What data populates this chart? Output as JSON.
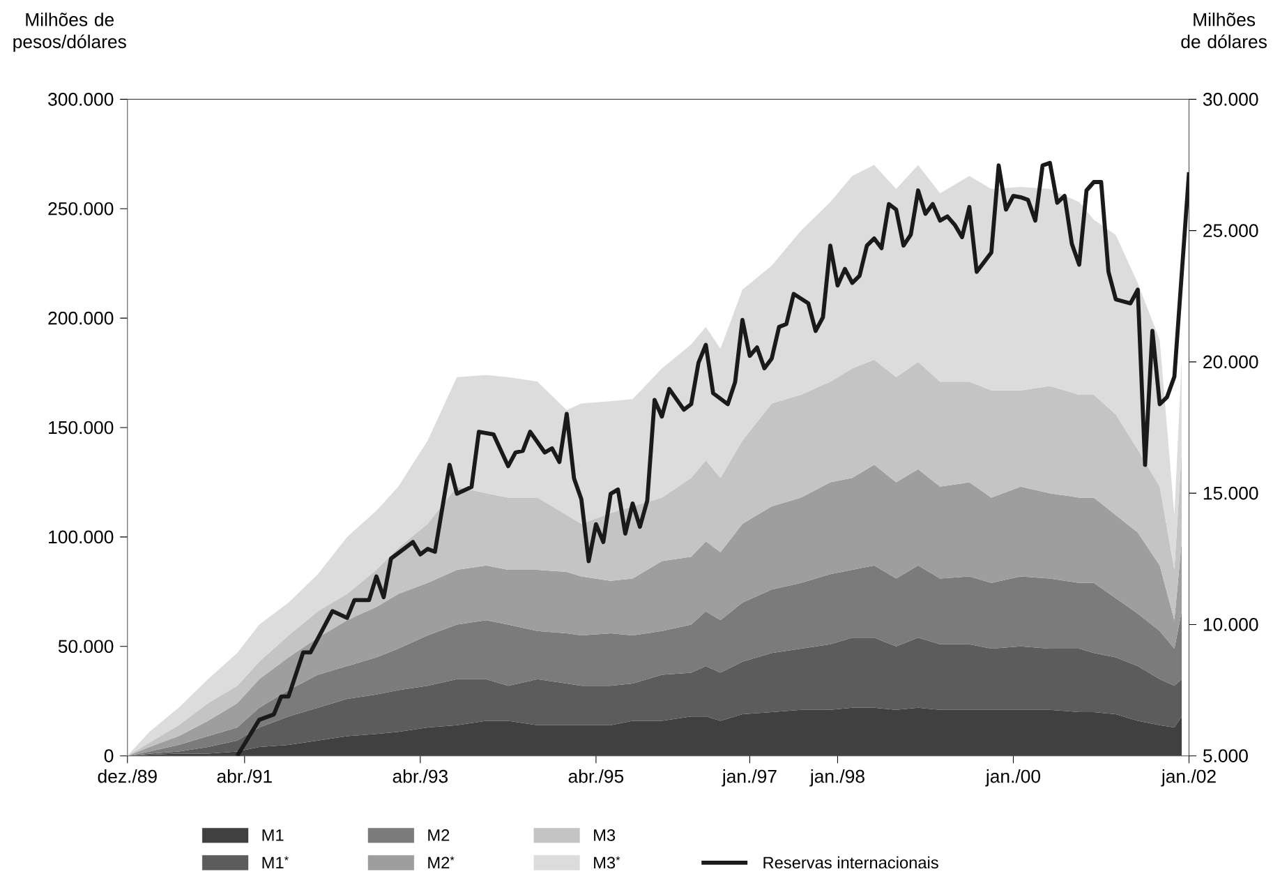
{
  "chart_data": {
    "type": "area",
    "stacked": true,
    "ylabel": "Milhões de pesos/dólares",
    "y2label": "Milhões de dólares",
    "legend": "bottom",
    "x": [
      "1989-12",
      "1990-03",
      "1990-07",
      "1990-11",
      "1991-03",
      "1991-06",
      "1991-10",
      "1992-02",
      "1992-06",
      "1992-10",
      "1993-01",
      "1993-05",
      "1993-09",
      "1994-01",
      "1994-04",
      "1994-08",
      "1994-12",
      "1995-02",
      "1995-06",
      "1995-09",
      "1996-01",
      "1996-05",
      "1996-07",
      "1996-09",
      "1996-12",
      "1997-04",
      "1997-08",
      "1997-12",
      "1998-03",
      "1998-06",
      "1998-09",
      "1998-12",
      "1999-03",
      "1999-07",
      "1999-10",
      "2000-02",
      "2000-06",
      "2000-10",
      "2000-12",
      "2001-03",
      "2001-06",
      "2001-09",
      "2001-11",
      "2001-12"
    ],
    "xlim": [
      "1989-12",
      "2002-01"
    ],
    "xticks": [
      {
        "value": "1989-12",
        "label": "dez./89"
      },
      {
        "value": "1991-04",
        "label": "abr./91"
      },
      {
        "value": "1993-04",
        "label": "abr./93"
      },
      {
        "value": "1995-04",
        "label": "abr./95"
      },
      {
        "value": "1997-01",
        "label": "jan./97"
      },
      {
        "value": "1998-01",
        "label": "jan./98"
      },
      {
        "value": "2000-01",
        "label": "jan./00"
      },
      {
        "value": "2002-01",
        "label": "jan./02"
      }
    ],
    "ylim": [
      0,
      300000
    ],
    "yticks": [
      {
        "value": 0,
        "label": "0"
      },
      {
        "value": 50000,
        "label": "50.000"
      },
      {
        "value": 100000,
        "label": "100.000"
      },
      {
        "value": 150000,
        "label": "150.000"
      },
      {
        "value": 200000,
        "label": "200.000"
      },
      {
        "value": 250000,
        "label": "250.000"
      },
      {
        "value": 300000,
        "label": "300.000"
      }
    ],
    "y2lim": [
      5000,
      30000
    ],
    "y2ticks": [
      {
        "value": 5000,
        "label": "5.000"
      },
      {
        "value": 10000,
        "label": "10.000"
      },
      {
        "value": 15000,
        "label": "15.000"
      },
      {
        "value": 20000,
        "label": "20.000"
      },
      {
        "value": 25000,
        "label": "25.000"
      },
      {
        "value": 30000,
        "label": "30.000"
      }
    ],
    "series": [
      {
        "name": "M1",
        "color": "#404040",
        "values": [
          0,
          500,
          1000,
          1000,
          2000,
          4000,
          5000,
          7000,
          9000,
          10000,
          11000,
          13000,
          14000,
          16000,
          16000,
          14000,
          14000,
          14000,
          14000,
          16000,
          16000,
          18000,
          18000,
          16000,
          19000,
          20000,
          21000,
          21000,
          22000,
          22000,
          21000,
          22000,
          21000,
          21000,
          21000,
          21000,
          21000,
          20000,
          20000,
          19000,
          16000,
          14000,
          13000,
          18000
        ]
      },
      {
        "name": "M1$^{*}$",
        "color": "#5c5c5c",
        "values": [
          0,
          500,
          1000,
          3000,
          5000,
          9000,
          13000,
          15000,
          17000,
          18000,
          19000,
          19000,
          21000,
          19000,
          16000,
          21000,
          19000,
          18000,
          18000,
          17000,
          21000,
          20000,
          23000,
          22000,
          24000,
          27000,
          28000,
          30000,
          32000,
          32000,
          29000,
          32000,
          30000,
          30000,
          28000,
          29000,
          28000,
          29000,
          27000,
          26000,
          25000,
          21000,
          19000,
          17000
        ]
      },
      {
        "name": "M2",
        "color": "#7b7b7b",
        "values": [
          0,
          1000,
          3000,
          5000,
          6000,
          9000,
          12000,
          15000,
          15000,
          17000,
          19000,
          23000,
          25000,
          27000,
          28000,
          22000,
          23000,
          23000,
          24000,
          22000,
          20000,
          22000,
          25000,
          24000,
          27000,
          29000,
          30000,
          32000,
          31000,
          33000,
          31000,
          33000,
          30000,
          31000,
          30000,
          32000,
          32000,
          30000,
          32000,
          27000,
          24000,
          22000,
          17000,
          31000
        ]
      },
      {
        "name": "M2$^{*}$",
        "color": "#9e9e9e",
        "values": [
          0,
          2000,
          4000,
          7000,
          11000,
          13000,
          15000,
          17000,
          21000,
          23000,
          25000,
          24000,
          25000,
          25000,
          25000,
          28000,
          28000,
          27000,
          24000,
          26000,
          32000,
          31000,
          32000,
          31000,
          36000,
          38000,
          39000,
          42000,
          42000,
          46000,
          44000,
          44000,
          42000,
          43000,
          39000,
          41000,
          39000,
          39000,
          39000,
          38000,
          37000,
          30000,
          13000,
          32000
        ]
      },
      {
        "name": "M3",
        "color": "#c4c4c4",
        "values": [
          0,
          2000,
          5000,
          8000,
          8000,
          8000,
          10000,
          12000,
          12000,
          17000,
          21000,
          27000,
          38000,
          33000,
          33000,
          33000,
          26000,
          24000,
          31000,
          33000,
          29000,
          36000,
          37000,
          34000,
          38000,
          47000,
          47000,
          46000,
          50000,
          48000,
          48000,
          49000,
          48000,
          46000,
          49000,
          44000,
          49000,
          47000,
          47000,
          46000,
          38000,
          36000,
          23000,
          41000
        ]
      },
      {
        "name": "M3$^{*}$",
        "color": "#dcdcdc",
        "values": [
          0,
          5000,
          8000,
          11000,
          15000,
          17000,
          15000,
          17000,
          26000,
          27000,
          28000,
          38000,
          50000,
          54000,
          55000,
          53000,
          48000,
          55000,
          51000,
          49000,
          59000,
          61000,
          61000,
          59000,
          69000,
          63000,
          75000,
          82000,
          88000,
          89000,
          86000,
          90000,
          86000,
          94000,
          92000,
          93000,
          90000,
          88000,
          80000,
          82000,
          76000,
          67000,
          25000,
          42000
        ]
      },
      {
        "name": "Reservas internacionais",
        "type": "line",
        "axis": "y2",
        "color": "#1a1a1a",
        "x": [
          "1991-03",
          "1991-06",
          "1991-08",
          "1991-09",
          "1991-10",
          "1991-12",
          "1992-01",
          "1992-04",
          "1992-06",
          "1992-07",
          "1992-09",
          "1992-10",
          "1992-11",
          "1992-12",
          "1993-03",
          "1993-04",
          "1993-05",
          "1993-06",
          "1993-08",
          "1993-09",
          "1993-11",
          "1993-12",
          "1994-02",
          "1994-04",
          "1994-05",
          "1994-06",
          "1994-07",
          "1994-09",
          "1994-10",
          "1994-11",
          "1994-12",
          "1995-01",
          "1995-02",
          "1995-03",
          "1995-04",
          "1995-05",
          "1995-06",
          "1995-07",
          "1995-08",
          "1995-09",
          "1995-10",
          "1995-11",
          "1995-12",
          "1996-01",
          "1996-02",
          "1996-04",
          "1996-05",
          "1996-06",
          "1996-07",
          "1996-08",
          "1996-10",
          "1996-11",
          "1996-12",
          "1997-01",
          "1997-02",
          "1997-03",
          "1997-04",
          "1997-05",
          "1997-06",
          "1997-07",
          "1997-09",
          "1997-10",
          "1997-11",
          "1997-12",
          "1998-01",
          "1998-02",
          "1998-03",
          "1998-04",
          "1998-05",
          "1998-06",
          "1998-07",
          "1998-08",
          "1998-09",
          "1998-10",
          "1998-11",
          "1998-12",
          "1999-01",
          "1999-02",
          "1999-03",
          "1999-04",
          "1999-05",
          "1999-06",
          "1999-07",
          "1999-08",
          "1999-10",
          "1999-11",
          "1999-12",
          "2000-01",
          "2000-02",
          "2000-03",
          "2000-04",
          "2000-05",
          "2000-06",
          "2000-07",
          "2000-08",
          "2000-09",
          "2000-10",
          "2000-11",
          "2000-12",
          "2001-01",
          "2001-02",
          "2001-03",
          "2001-05",
          "2001-06",
          "2001-07",
          "2001-08",
          "2001-09",
          "2001-10",
          "2001-11",
          "2002-01"
        ],
        "values": [
          5000,
          6370,
          6580,
          7260,
          7260,
          8940,
          8940,
          10510,
          10250,
          10930,
          10930,
          11830,
          11040,
          12510,
          13140,
          12670,
          12880,
          12770,
          16080,
          14980,
          15240,
          17340,
          17240,
          16030,
          16550,
          16610,
          17340,
          16550,
          16710,
          16190,
          18020,
          15560,
          14770,
          12410,
          13820,
          13140,
          14980,
          15140,
          13460,
          14610,
          13720,
          14720,
          18550,
          17920,
          18970,
          18180,
          18390,
          19970,
          20650,
          18810,
          18390,
          19230,
          21600,
          20230,
          20550,
          19760,
          20130,
          21330,
          21440,
          22590,
          22230,
          21180,
          21700,
          24430,
          22910,
          23540,
          23010,
          23280,
          24430,
          24700,
          24330,
          26010,
          25800,
          24430,
          24850,
          26530,
          25640,
          26010,
          25380,
          25540,
          25220,
          24750,
          25900,
          23430,
          24170,
          27480,
          25800,
          26320,
          26270,
          26170,
          25380,
          27480,
          27580,
          26060,
          26320,
          24490,
          23700,
          26530,
          26850,
          26850,
          23430,
          22380,
          22230,
          22750,
          16080,
          21180,
          18390,
          18660,
          19440,
          27220
        ]
      }
    ]
  }
}
